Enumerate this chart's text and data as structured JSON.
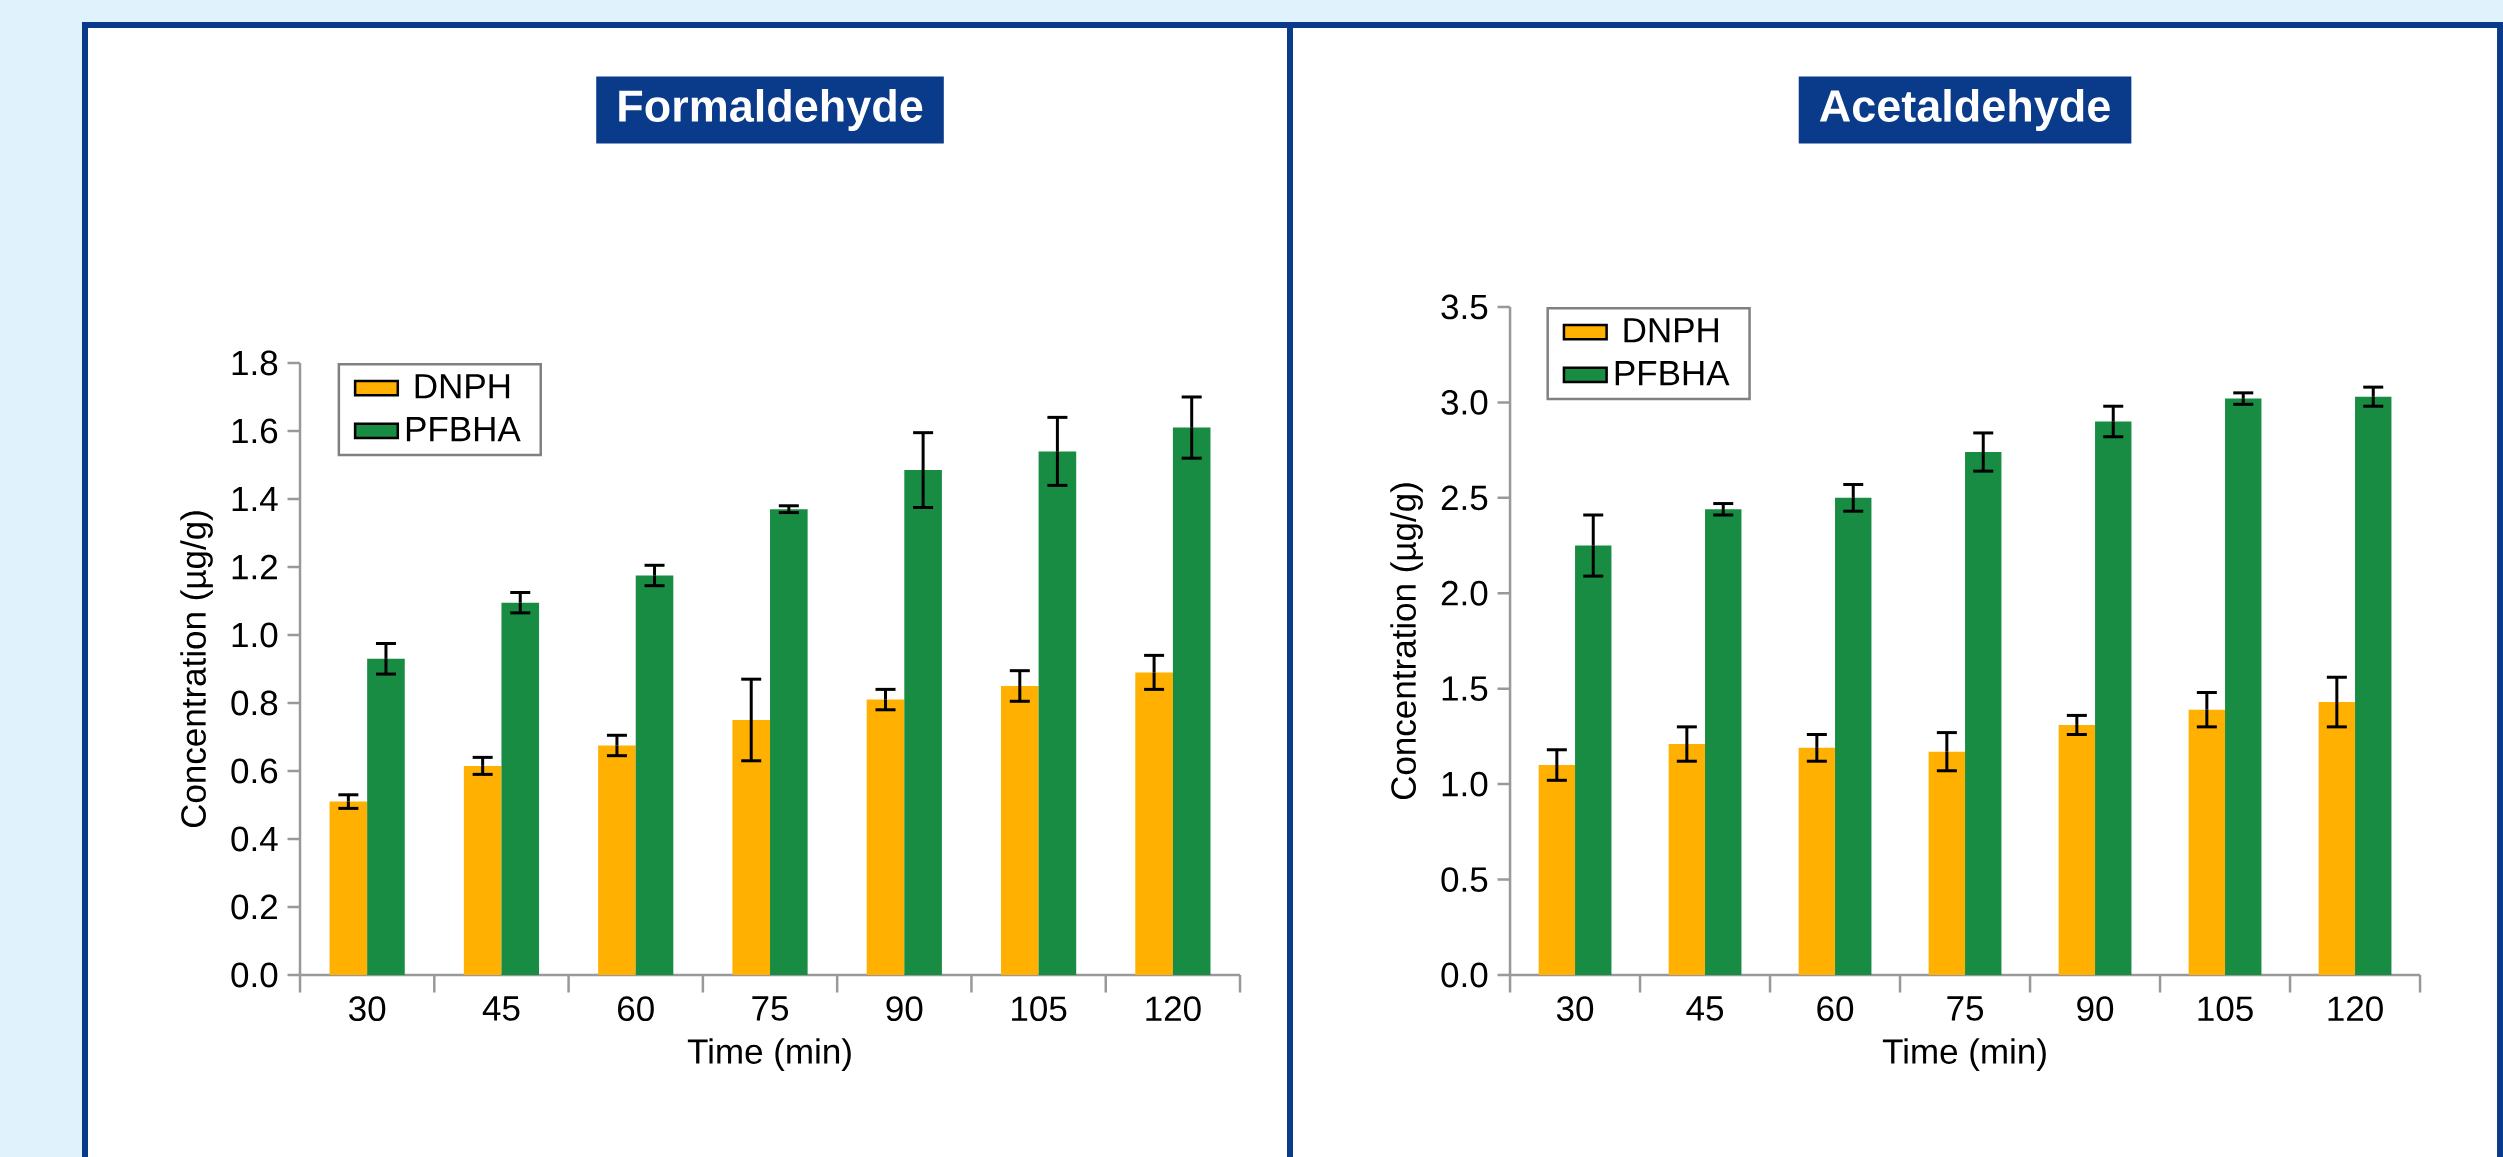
{
  "chart_data": [
    {
      "type": "bar",
      "title": "Formaldehyde",
      "xlabel": "Time (min)",
      "ylabel": "Concentration (µg/g)",
      "categories": [
        "30",
        "45",
        "60",
        "75",
        "90",
        "105",
        "120"
      ],
      "ylim": [
        0,
        1.8
      ],
      "yticks": [
        {
          "value": 0,
          "label": "0.0"
        },
        {
          "value": 0.2,
          "label": "0.2"
        },
        {
          "value": 0.4,
          "label": "0.4"
        },
        {
          "value": 0.6,
          "label": "0.6"
        },
        {
          "value": 0.8,
          "label": "0.8"
        },
        {
          "value": 1.0,
          "label": "1.0"
        },
        {
          "value": 1.2,
          "label": "1.2"
        },
        {
          "value": 1.4,
          "label": "1.4"
        },
        {
          "value": 1.6,
          "label": "1.6"
        },
        {
          "value": 1.8,
          "label": "1.8"
        }
      ],
      "legend": "top left",
      "series": [
        {
          "name": "DNPH",
          "color": "#ffb000",
          "values": [
            0.51,
            0.615,
            0.675,
            0.75,
            0.81,
            0.85,
            0.89
          ],
          "errors": [
            0.02,
            0.025,
            0.03,
            0.12,
            0.03,
            0.045,
            0.05
          ]
        },
        {
          "name": "PFBHA",
          "color": "#178c42",
          "values": [
            0.93,
            1.095,
            1.175,
            1.37,
            1.485,
            1.54,
            1.61
          ],
          "errors": [
            0.045,
            0.03,
            0.03,
            0.01,
            0.11,
            0.1,
            0.09
          ]
        }
      ]
    },
    {
      "type": "bar",
      "title": "Acetaldehyde",
      "xlabel": "Time (min)",
      "ylabel": "Concentration (µg/g)",
      "categories": [
        "30",
        "45",
        "60",
        "75",
        "90",
        "105",
        "120"
      ],
      "ylim": [
        0,
        3.5
      ],
      "yticks": [
        {
          "value": 0,
          "label": "0.0"
        },
        {
          "value": 0.5,
          "label": "0.5"
        },
        {
          "value": 1.0,
          "label": "1.0"
        },
        {
          "value": 1.5,
          "label": "1.5"
        },
        {
          "value": 2.0,
          "label": "2.0"
        },
        {
          "value": 2.5,
          "label": "2.5"
        },
        {
          "value": 3.0,
          "label": "3.0"
        },
        {
          "value": 3.5,
          "label": "3.5"
        }
      ],
      "legend": "top left",
      "series": [
        {
          "name": "DNPH",
          "color": "#ffb000",
          "values": [
            1.1,
            1.21,
            1.19,
            1.17,
            1.31,
            1.39,
            1.43
          ],
          "errors": [
            0.08,
            0.09,
            0.07,
            0.1,
            0.05,
            0.09,
            0.13
          ]
        },
        {
          "name": "PFBHA",
          "color": "#178c42",
          "values": [
            2.25,
            2.44,
            2.5,
            2.74,
            2.9,
            3.02,
            3.03
          ],
          "errors": [
            0.16,
            0.03,
            0.07,
            0.1,
            0.08,
            0.03,
            0.05
          ]
        }
      ]
    }
  ]
}
